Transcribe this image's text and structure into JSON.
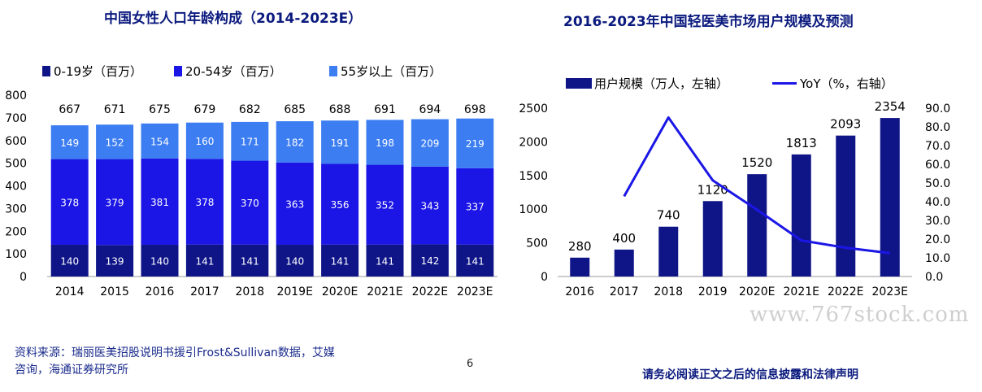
{
  "titles": {
    "left": "中国女性人口年龄构成（2014-2023E）",
    "right": "2016-2023年中国轻医美市场用户规模及预测"
  },
  "colors": {
    "title": "#0b1a7e",
    "seg_0_19": "#0f1587",
    "seg_20_54": "#1b16e6",
    "seg_55": "#3c7ef2",
    "bar_right": "#0f1587",
    "line_right": "#1b16e6"
  },
  "chart_data": [
    {
      "type": "bar",
      "stacked": true,
      "title": "中国女性人口年龄构成（2014-2023E）",
      "categories": [
        "2014",
        "2015",
        "2016",
        "2017",
        "2018",
        "2019E",
        "2020E",
        "2021E",
        "2022E",
        "2023E"
      ],
      "series": [
        {
          "name": "0-19岁（百万）",
          "values": [
            140,
            139,
            140,
            141,
            141,
            140,
            141,
            141,
            142,
            141
          ]
        },
        {
          "name": "20-54岁（百万）",
          "values": [
            378,
            379,
            381,
            378,
            370,
            363,
            356,
            352,
            343,
            337
          ]
        },
        {
          "name": "55岁以上（百万）",
          "values": [
            149,
            152,
            154,
            160,
            171,
            182,
            191,
            198,
            209,
            219
          ]
        }
      ],
      "totals": [
        667,
        671,
        675,
        679,
        682,
        685,
        688,
        691,
        694,
        698
      ],
      "ylim": [
        0,
        800
      ],
      "yticks": [
        0,
        100,
        200,
        300,
        400,
        500,
        600,
        700,
        800
      ],
      "legend": "top",
      "grid": false
    },
    {
      "type": "bar+line",
      "title": "2016-2023年中国轻医美市场用户规模及预测",
      "categories": [
        "2016",
        "2017",
        "2018",
        "2019",
        "2020E",
        "2021E",
        "2022E",
        "2023E"
      ],
      "series": [
        {
          "name": "用户规模（万人，左轴）",
          "type": "bar",
          "axis": "left",
          "values": [
            280,
            400,
            740,
            1120,
            1520,
            1813,
            2093,
            2354
          ]
        },
        {
          "name": "YoY（%，右轴）",
          "type": "line",
          "axis": "right",
          "values": [
            null,
            42.9,
            85.0,
            51.4,
            35.7,
            19.3,
            15.4,
            12.5
          ]
        }
      ],
      "ylim_left": [
        0,
        2500
      ],
      "yticks_left": [
        0,
        500,
        1000,
        1500,
        2000,
        2500
      ],
      "ylim_right": [
        0,
        90
      ],
      "yticks_right": [
        "0.0",
        "10.0",
        "20.0",
        "30.0",
        "40.0",
        "50.0",
        "60.0",
        "70.0",
        "80.0",
        "90.0"
      ],
      "legend": "top",
      "grid": false
    }
  ],
  "footer": {
    "source_line1": "资料来源：瑞丽医美招股说明书援引Frost&Sullivan数据，艾媒",
    "source_line2": "咨询，海通证券研究所",
    "page_number": "6",
    "disclaimer": "请务必阅读正文之后的信息披露和法律声明",
    "watermark": "www.767stock.com"
  }
}
